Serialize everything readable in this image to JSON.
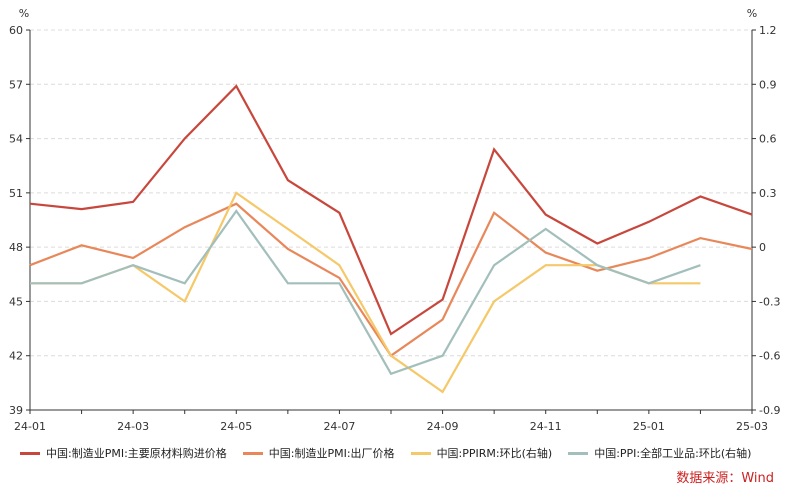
{
  "chart_data": {
    "type": "line",
    "left_unit": "%",
    "right_unit": "%",
    "categories": [
      "24-01",
      "24-02",
      "24-03",
      "24-04",
      "24-05",
      "24-06",
      "24-07",
      "24-08",
      "24-09",
      "24-10",
      "24-11",
      "24-12",
      "25-01",
      "25-02",
      "25-03"
    ],
    "x_tick_labels": [
      "24-01",
      "24-03",
      "24-05",
      "24-07",
      "24-09",
      "24-11",
      "25-01",
      "25-03"
    ],
    "left_axis": {
      "min": 39,
      "max": 60,
      "ticks": [
        "39",
        "42",
        "45",
        "48",
        "51",
        "54",
        "57",
        "60"
      ]
    },
    "right_axis": {
      "min": -0.9,
      "max": 1.2,
      "ticks": [
        "-0.9",
        "-0.6",
        "-0.3",
        "0",
        "0.3",
        "0.6",
        "0.9",
        "1.2"
      ]
    },
    "grid": true,
    "legend_position": "bottom",
    "series": [
      {
        "name": "中国:制造业PMI:主要原材料购进价格",
        "axis": "left",
        "color": "#c8473c",
        "values": [
          50.4,
          50.1,
          50.5,
          54.0,
          56.9,
          51.7,
          49.9,
          43.2,
          45.1,
          53.4,
          49.8,
          48.2,
          49.4,
          50.8,
          49.8
        ]
      },
      {
        "name": "中国:制造业PMI:出厂价格",
        "axis": "left",
        "color": "#e8885a",
        "values": [
          47.0,
          48.1,
          47.4,
          49.1,
          50.4,
          47.9,
          46.3,
          42.0,
          44.0,
          49.9,
          47.7,
          46.7,
          47.4,
          48.5,
          47.9
        ]
      },
      {
        "name": "中国:PPIRM:环比(右轴)",
        "axis": "right",
        "color": "#f5c869",
        "values": [
          -0.2,
          -0.2,
          -0.1,
          -0.3,
          0.3,
          0.1,
          -0.1,
          -0.6,
          -0.8,
          -0.3,
          -0.1,
          -0.1,
          -0.2,
          -0.2,
          null
        ]
      },
      {
        "name": "中国:PPI:全部工业品:环比(右轴)",
        "axis": "right",
        "color": "#a3bfbb",
        "values": [
          -0.2,
          -0.2,
          -0.1,
          -0.2,
          0.2,
          -0.2,
          -0.2,
          -0.7,
          -0.6,
          -0.1,
          0.1,
          -0.1,
          -0.2,
          -0.1,
          null
        ]
      }
    ]
  },
  "source_label": "数据来源：Wind"
}
